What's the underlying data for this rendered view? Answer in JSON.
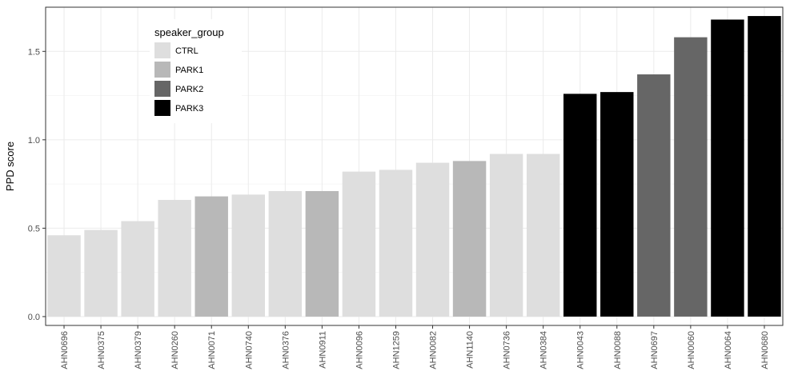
{
  "chart_data": {
    "type": "bar",
    "title": "",
    "xlabel": "",
    "ylabel": "PPD score",
    "ylim": [
      -0.05,
      1.75
    ],
    "yticks": [
      0.0,
      0.5,
      1.0,
      1.5
    ],
    "ytick_labels": [
      "0.0",
      "0.5",
      "1.0",
      "1.5"
    ],
    "grid": true,
    "legend": {
      "title": "speaker_group",
      "placement": "top-left",
      "entries": [
        {
          "label": "CTRL",
          "color": "#dedede"
        },
        {
          "label": "PARK1",
          "color": "#b8b8b8"
        },
        {
          "label": "PARK2",
          "color": "#666666"
        },
        {
          "label": "PARK3",
          "color": "#000000"
        }
      ]
    },
    "categories": [
      "AHN0696",
      "AHN0375",
      "AHN0379",
      "AHN0260",
      "AHN0071",
      "AHN0740",
      "AHN0376",
      "AHN0911",
      "AHN0096",
      "AHN1259",
      "AHN0082",
      "AHN1140",
      "AHN0736",
      "AHN0384",
      "AHN0043",
      "AHN0088",
      "AHN0697",
      "AHN0060",
      "AHN0064",
      "AHN0680"
    ],
    "values": [
      0.46,
      0.49,
      0.54,
      0.66,
      0.68,
      0.69,
      0.71,
      0.71,
      0.82,
      0.83,
      0.87,
      0.88,
      0.92,
      0.92,
      1.26,
      1.27,
      1.37,
      1.58,
      1.68,
      1.7
    ],
    "groups": [
      "CTRL",
      "CTRL",
      "CTRL",
      "CTRL",
      "PARK1",
      "CTRL",
      "CTRL",
      "PARK1",
      "CTRL",
      "CTRL",
      "CTRL",
      "PARK1",
      "CTRL",
      "CTRL",
      "PARK3",
      "PARK3",
      "PARK2",
      "PARK2",
      "PARK3",
      "PARK3"
    ]
  }
}
